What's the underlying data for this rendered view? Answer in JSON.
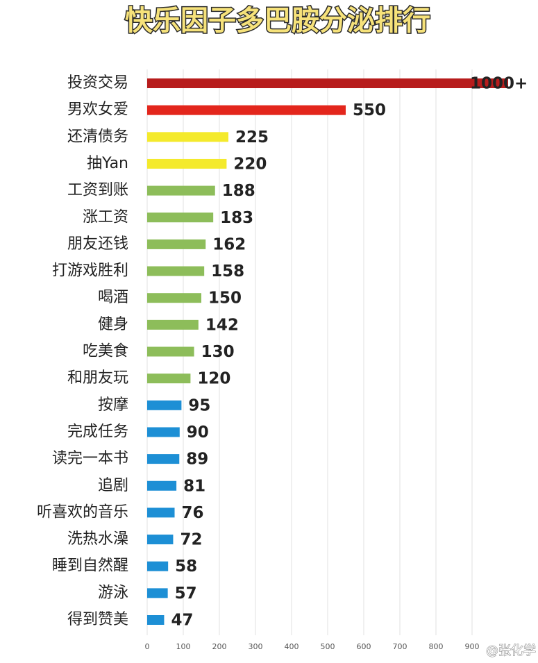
{
  "chart_data": {
    "type": "hbar",
    "title": "快乐因子多巴胺分泌排行",
    "categories": [
      "投资交易",
      "男欢女爱",
      "还清债务",
      "抽Yan",
      "工资到账",
      "涨工资",
      "朋友还钱",
      "打游戏胜利",
      "喝酒",
      "健身",
      "吃美食",
      "和朋友玩",
      "按摩",
      "完成任务",
      "读完一本书",
      "追剧",
      "听喜欢的音乐",
      "洗热水澡",
      "睡到自然醒",
      "游泳",
      "得到赞美"
    ],
    "values": [
      1000,
      550,
      225,
      220,
      188,
      183,
      162,
      158,
      150,
      142,
      130,
      120,
      95,
      90,
      89,
      81,
      76,
      72,
      58,
      57,
      47
    ],
    "value_labels": [
      "1000+",
      "550",
      "225",
      "220",
      "188",
      "183",
      "162",
      "158",
      "150",
      "142",
      "130",
      "120",
      "95",
      "90",
      "89",
      "81",
      "76",
      "72",
      "58",
      "57",
      "47"
    ],
    "colors": [
      "#b71c1c",
      "#e3261c",
      "#f4ea2c",
      "#f4ea2c",
      "#8dbd5a",
      "#8dbd5a",
      "#8dbd5a",
      "#8dbd5a",
      "#8dbd5a",
      "#8dbd5a",
      "#8dbd5a",
      "#8dbd5a",
      "#1d8fd5",
      "#1d8fd5",
      "#1d8fd5",
      "#1d8fd5",
      "#1d8fd5",
      "#1d8fd5",
      "#1d8fd5",
      "#1d8fd5",
      "#1d8fd5"
    ],
    "xlim": [
      0,
      1000
    ],
    "xticks": [
      0,
      100,
      200,
      300,
      400,
      500,
      600,
      700,
      800,
      900
    ],
    "grid": true,
    "watermark": "@张化学"
  }
}
